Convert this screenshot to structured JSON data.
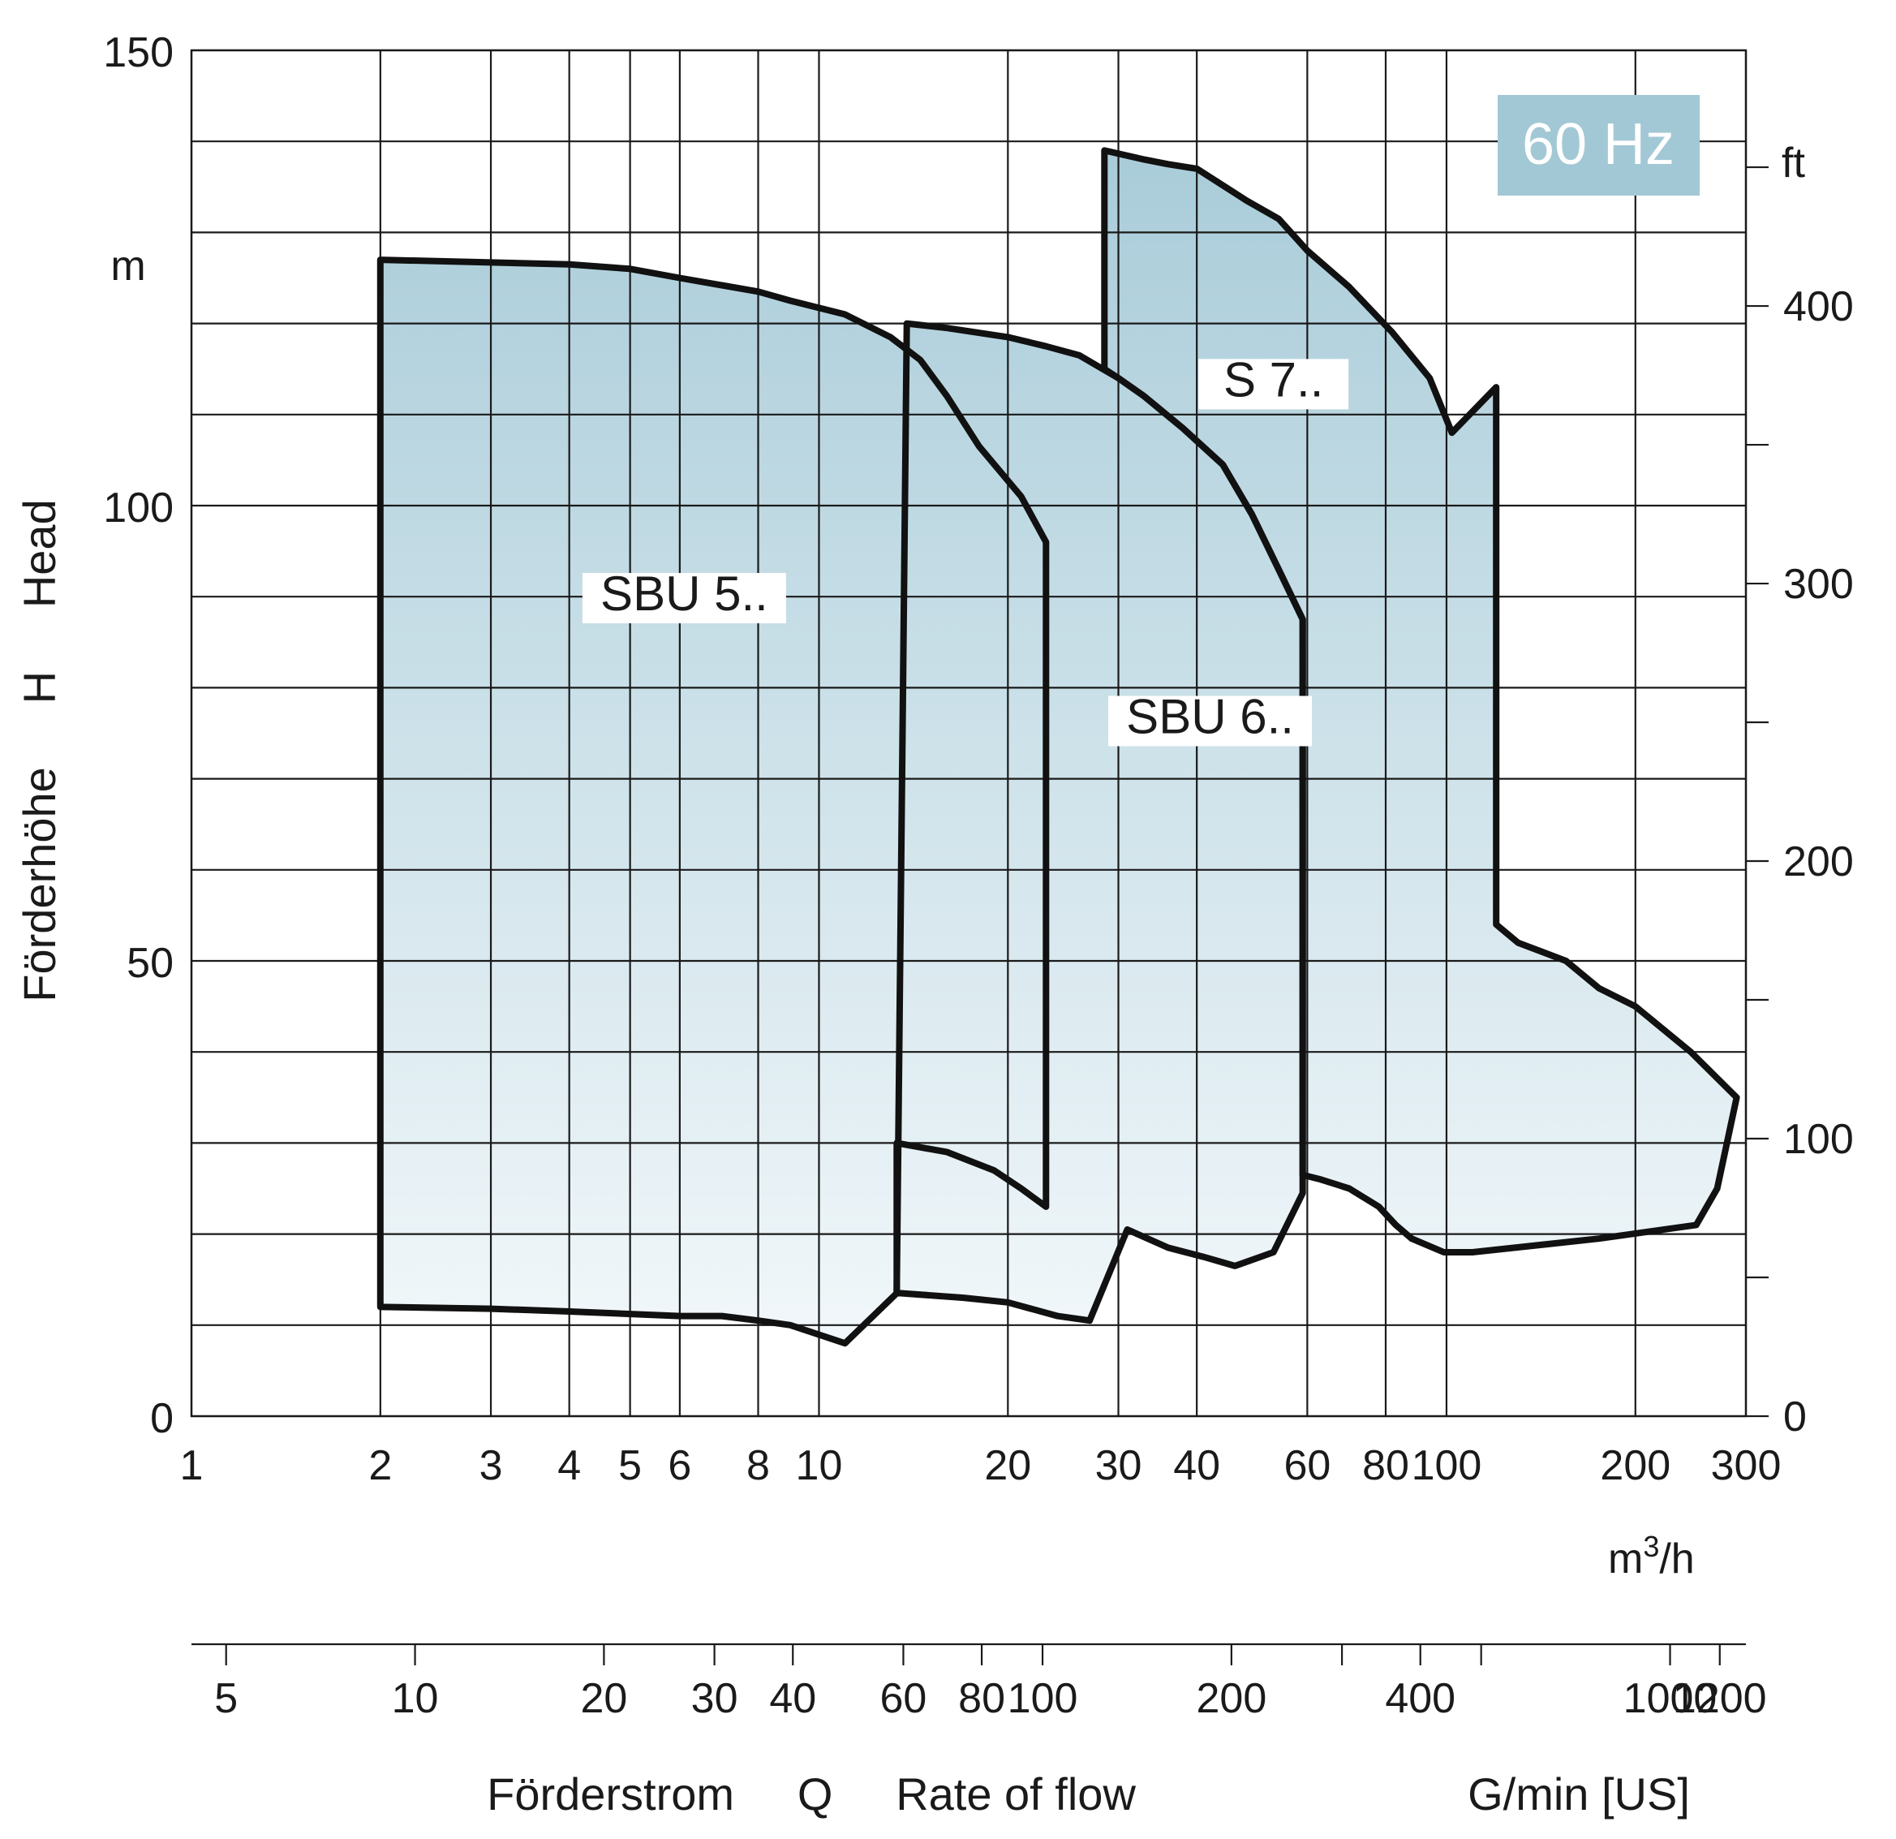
{
  "chart_data": {
    "type": "area",
    "badge": "60 Hz",
    "colors": {
      "badge_bg": "#a3c8d5",
      "fill_top": "#a9ccd9",
      "fill_bottom": "#f6fafc",
      "line": "#111111"
    },
    "x_scale": "log",
    "xlim": [
      1,
      300
    ],
    "ylim": [
      0,
      150
    ],
    "x_ticks": [
      1,
      2,
      3,
      4,
      5,
      6,
      8,
      10,
      20,
      30,
      40,
      60,
      80,
      100,
      200,
      300
    ],
    "x_tick_labels": [
      "1",
      "2",
      "3",
      "4",
      "5",
      "6",
      "8",
      "10",
      "20",
      "30",
      "40",
      "60",
      "80",
      "100",
      "200",
      "300"
    ],
    "x_unit": "m³/h",
    "y_ticks": [
      0,
      50,
      100,
      150
    ],
    "y_tick_labels": [
      "0",
      "50",
      "100",
      "150"
    ],
    "y_unit": "m",
    "y_label": "Förderhöhe     H     Head",
    "y_grid_step": 10,
    "y2_unit": "ft",
    "y2_ticks": [
      0,
      100,
      200,
      300,
      400
    ],
    "y2_tick_labels": [
      "0",
      "100",
      "200",
      "300",
      "400"
    ],
    "y2_minor_ticks": [
      50,
      150,
      250,
      350,
      450
    ],
    "x2_unit": "G/min [US]",
    "x2_ticks": [
      5,
      10,
      20,
      30,
      40,
      60,
      80,
      100,
      200,
      400,
      1000,
      1200
    ],
    "x2_tick_labels": [
      "5",
      "10",
      "20",
      "30",
      "40",
      "60",
      "80",
      "100",
      "200",
      "400",
      "1000",
      "1200"
    ],
    "x2_minor_ticks": [
      300,
      500
    ],
    "x_label": "Förderstrom     Q     Rate of flow",
    "series": [
      {
        "name": "SBU 5..",
        "label_at": [
          6.1,
          88.5
        ],
        "points": [
          [
            2,
            127
          ],
          [
            4,
            126.5
          ],
          [
            5,
            126
          ],
          [
            6,
            125
          ],
          [
            7,
            124.2
          ],
          [
            8,
            123.5
          ],
          [
            9,
            122.5
          ],
          [
            11,
            121
          ],
          [
            13,
            118.5
          ],
          [
            14.5,
            116
          ],
          [
            16,
            112
          ],
          [
            18,
            106.5
          ],
          [
            21,
            101
          ],
          [
            23,
            96
          ],
          [
            23,
            23
          ],
          [
            21,
            25
          ],
          [
            19,
            27
          ],
          [
            16,
            29
          ],
          [
            13.3,
            30
          ],
          [
            13.3,
            13.5
          ],
          [
            11,
            8
          ],
          [
            9,
            10
          ],
          [
            8,
            10.5
          ],
          [
            7,
            11
          ],
          [
            6,
            11
          ],
          [
            4,
            11.5
          ],
          [
            3,
            11.8
          ],
          [
            2,
            12
          ]
        ]
      },
      {
        "name": "SBU 6..",
        "label_at": [
          42,
          75
        ],
        "points": [
          [
            13.8,
            120
          ],
          [
            16,
            119.5
          ],
          [
            20,
            118.5
          ],
          [
            23,
            117.5
          ],
          [
            26,
            116.5
          ],
          [
            30,
            114
          ],
          [
            33,
            112
          ],
          [
            38,
            108.5
          ],
          [
            44,
            104.5
          ],
          [
            49,
            99
          ],
          [
            54,
            93
          ],
          [
            59,
            87.5
          ],
          [
            59,
            24.5
          ],
          [
            53,
            18
          ],
          [
            46,
            16.5
          ],
          [
            41,
            17.5
          ],
          [
            36,
            18.5
          ],
          [
            31,
            20.5
          ],
          [
            27,
            10.5
          ],
          [
            24,
            11
          ],
          [
            20,
            12.5
          ],
          [
            17,
            13
          ],
          [
            13.5,
            13.5
          ],
          [
            13.3,
            13.5
          ]
        ]
      },
      {
        "name": "S 7..",
        "label_at": [
          53,
          112
        ],
        "points": [
          [
            28.5,
            139
          ],
          [
            33,
            138
          ],
          [
            36,
            137.5
          ],
          [
            40,
            137
          ],
          [
            48,
            133.5
          ],
          [
            54,
            131.5
          ],
          [
            60,
            128
          ],
          [
            70,
            124
          ],
          [
            82,
            119
          ],
          [
            94,
            114
          ],
          [
            102,
            108
          ],
          [
            120,
            113
          ],
          [
            120,
            54
          ],
          [
            130,
            52
          ],
          [
            155,
            50
          ],
          [
            175,
            47
          ],
          [
            200,
            45
          ],
          [
            245,
            40
          ],
          [
            290,
            35
          ],
          [
            270,
            25
          ],
          [
            250,
            21
          ],
          [
            175,
            19.5
          ],
          [
            110,
            18
          ],
          [
            99,
            18
          ],
          [
            88,
            19.5
          ],
          [
            83,
            21
          ],
          [
            78,
            23
          ],
          [
            70,
            25
          ],
          [
            63,
            26
          ],
          [
            59,
            26.5
          ],
          [
            59,
            87.5
          ],
          [
            54,
            93
          ],
          [
            49,
            99
          ],
          [
            44,
            104.5
          ],
          [
            38,
            108.5
          ],
          [
            33,
            112
          ],
          [
            30,
            114
          ],
          [
            28.5,
            115
          ]
        ]
      }
    ]
  }
}
